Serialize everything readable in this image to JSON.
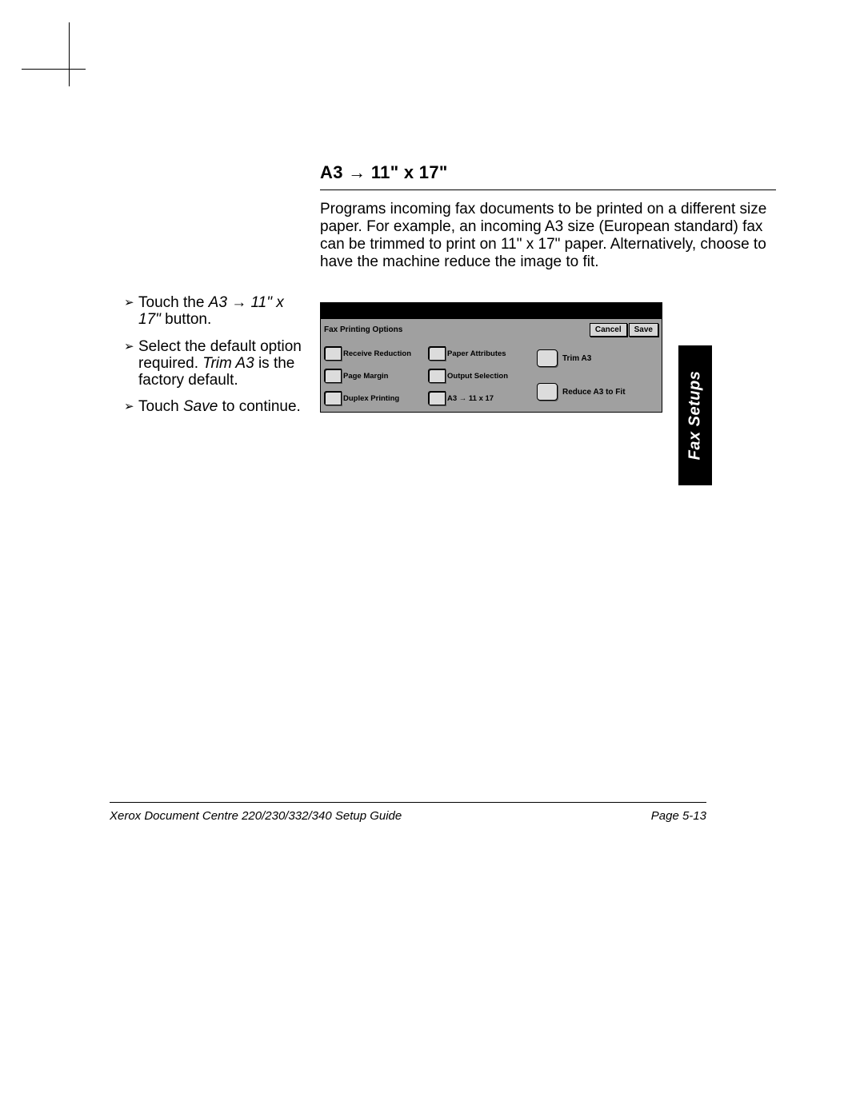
{
  "heading": "A3 → 11\" x 17\"",
  "paragraph": "Programs incoming fax documents to be printed on a different size paper. For example, an incoming A3  size (European standard) fax can be trimmed to print on 11\" x 17\" paper. Alternatively, choose to have the machine reduce the image to fit.",
  "steps": {
    "glyph": "➢",
    "s1_a": "Touch the ",
    "s1_i": "A3 → 11\" x 17\"",
    "s1_b": " button.",
    "s2_a": "Select the default option required. ",
    "s2_i": "Trim A3",
    "s2_b": " is the factory default.",
    "s3_a": "Touch ",
    "s3_i": "Save",
    "s3_b": " to continue."
  },
  "ui": {
    "title": "Fax Printing Options",
    "cancel": "Cancel",
    "save": "Save",
    "col1": {
      "b1": "Receive Reduction",
      "b2": "Page Margin",
      "b3": "Duplex Printing"
    },
    "col2": {
      "b1": "Paper Attributes",
      "b2": "Output Selection",
      "b3": "A3  →  11 x 17"
    },
    "col3": {
      "b1": "Trim A3",
      "b2": "Reduce A3 to Fit"
    },
    "colors": {
      "panel_bg": "#a0a0a0",
      "button_bg": "#d6d6d6",
      "chip_bg": "#dcdcdc",
      "topbar_bg": "#000000"
    }
  },
  "sideTab": "Fax Setups",
  "footer": {
    "left": "Xerox Document Centre 220/230/332/340 Setup Guide",
    "right": "Page 5-13"
  }
}
